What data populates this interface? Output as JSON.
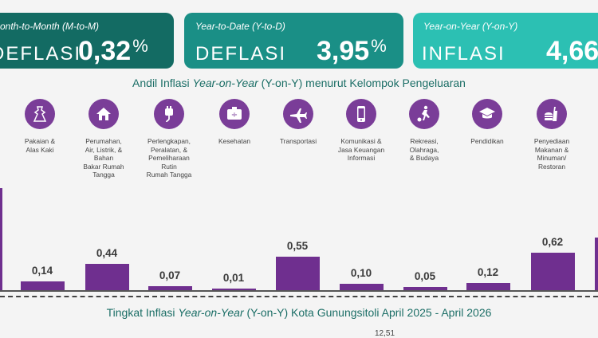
{
  "cards": {
    "mtm": {
      "label": "Month-to-Month (M-to-M)",
      "kind": "DEFLASI",
      "value": "0,32",
      "pct": "%",
      "color": "#136b63"
    },
    "ytd": {
      "label": "Year-to-Date (Y-to-D)",
      "kind": "DEFLASI",
      "value": "3,95",
      "pct": "%",
      "color": "#1a8f86"
    },
    "yoy": {
      "label": "Year-on-Year (Y-on-Y)",
      "kind": "INFLASI",
      "value": "4,66",
      "color": "#2cc0b3"
    }
  },
  "andil_title": {
    "pre": "Andil Inflasi ",
    "italic": "Year-on-Year",
    "post": " (Y-on-Y) menurut Kelompok Pengeluaran"
  },
  "chart_data": {
    "type": "bar",
    "categories": [
      "Pakaian &\nAlas Kaki",
      "Perumahan,\nAir, Listrik, &\nBahan\nBakar Rumah\nTangga",
      "Perlengkapan,\nPeralatan, &\nPemeliharaan\nRutin\nRumah Tangga",
      "Kesehatan",
      "Transportasi",
      "Komunikasi &\nJasa Keuangan\nInformasi",
      "Rekreasi,\nOlahraga,\n& Budaya",
      "Pendidikan",
      "Penyediaan\nMakanan &\nMinuman/\nRestoran"
    ],
    "icons": [
      "dress-icon",
      "house-icon",
      "plug-icon",
      "medicine-kit-icon",
      "airplane-icon",
      "smartphone-icon",
      "football-player-icon",
      "graduation-cap-icon",
      "food-drink-icon"
    ],
    "values": [
      0.14,
      0.44,
      0.07,
      0.01,
      0.55,
      0.1,
      0.05,
      0.12,
      0.62
    ],
    "value_labels": [
      "0,14",
      "0,44",
      "0,07",
      "0,01",
      "0,55",
      "0,10",
      "0,05",
      "0,12",
      "0,62"
    ],
    "bar_color": "#6f2f8f",
    "icon_color": "#7a3d98"
  },
  "trend_title": {
    "pre": "Tingkat Inflasi ",
    "italic": "Year-on-Year",
    "post": " (Y-on-Y) Kota Gunungsitoli April 2025 - April 2026"
  },
  "bottom_cut": "12,51"
}
